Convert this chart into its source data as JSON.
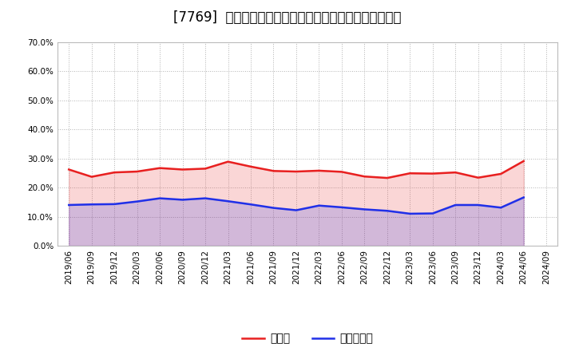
{
  "title": "[7769]  現須金、有利子負債の総資産に対する比率の推移",
  "xlabel_dates": [
    "2019/06",
    "2019/09",
    "2019/12",
    "2020/03",
    "2020/06",
    "2020/09",
    "2020/12",
    "2021/03",
    "2021/06",
    "2021/09",
    "2021/12",
    "2022/03",
    "2022/06",
    "2022/09",
    "2022/12",
    "2023/03",
    "2023/06",
    "2023/09",
    "2023/12",
    "2024/03",
    "2024/06",
    "2024/09"
  ],
  "cash_ratio": [
    0.262,
    0.237,
    0.252,
    0.255,
    0.267,
    0.262,
    0.265,
    0.289,
    0.272,
    0.257,
    0.255,
    0.258,
    0.254,
    0.238,
    0.233,
    0.249,
    0.248,
    0.252,
    0.234,
    0.247,
    0.291,
    null
  ],
  "debt_ratio": [
    0.14,
    0.142,
    0.143,
    0.152,
    0.163,
    0.158,
    0.163,
    0.153,
    0.142,
    0.13,
    0.122,
    0.138,
    0.132,
    0.125,
    0.12,
    0.11,
    0.111,
    0.14,
    0.14,
    0.131,
    0.166,
    null
  ],
  "cash_color": "#e82020",
  "debt_color": "#2030e8",
  "background_color": "#ffffff",
  "plot_bg_color": "#ffffff",
  "grid_color": "#aaaaaa",
  "ylim": [
    0.0,
    0.7
  ],
  "yticks": [
    0.0,
    0.1,
    0.2,
    0.3,
    0.4,
    0.5,
    0.6,
    0.7
  ],
  "legend_cash": "現須金",
  "legend_debt": "有利子負債",
  "title_fontsize": 12,
  "tick_fontsize": 7.5,
  "legend_fontsize": 10
}
